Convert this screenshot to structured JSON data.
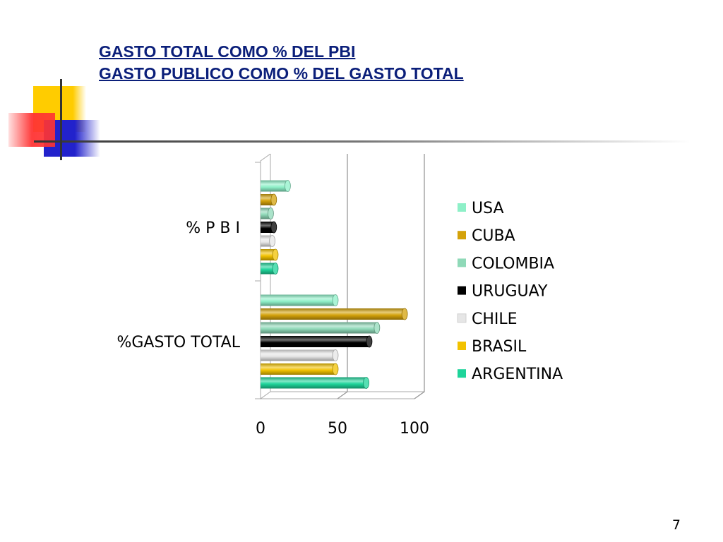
{
  "slide": {
    "title_line1": "GASTO TOTAL COMO % DEL PBI",
    "title_line2": "GASTO PUBLICO COMO % DEL GASTO TOTAL",
    "page_number": "7"
  },
  "colors": {
    "title": "#0b1f7a",
    "deco_yellow": "#ffcc00",
    "deco_red": "#ff3333",
    "deco_blue": "#2222cc"
  },
  "chart_data": {
    "type": "bar",
    "orientation": "horizontal",
    "three_d": true,
    "categories": [
      "%GASTO TOTAL",
      "% P B I"
    ],
    "series": [
      {
        "name": "USA",
        "color": "#8ef0c8",
        "values": [
          50,
          19
        ]
      },
      {
        "name": "CUBA",
        "color": "#d4a20a",
        "values": [
          95,
          10
        ]
      },
      {
        "name": "COLOMBIA",
        "color": "#8fd9b8",
        "values": [
          77,
          8
        ]
      },
      {
        "name": "URUGUAY",
        "color": "#000000",
        "values": [
          72,
          10
        ]
      },
      {
        "name": "CHILE",
        "color": "#e6e6e6",
        "values": [
          50,
          9
        ]
      },
      {
        "name": "BRASIL",
        "color": "#f2c200",
        "values": [
          50,
          11
        ]
      },
      {
        "name": "ARGENTINA",
        "color": "#1ed49a",
        "values": [
          70,
          11
        ]
      }
    ],
    "xlim": [
      0,
      100
    ],
    "x_ticks": [
      "0",
      "50",
      "100"
    ],
    "grid": "vertical",
    "legend_position": "right",
    "title": "",
    "xlabel": "",
    "ylabel": ""
  }
}
